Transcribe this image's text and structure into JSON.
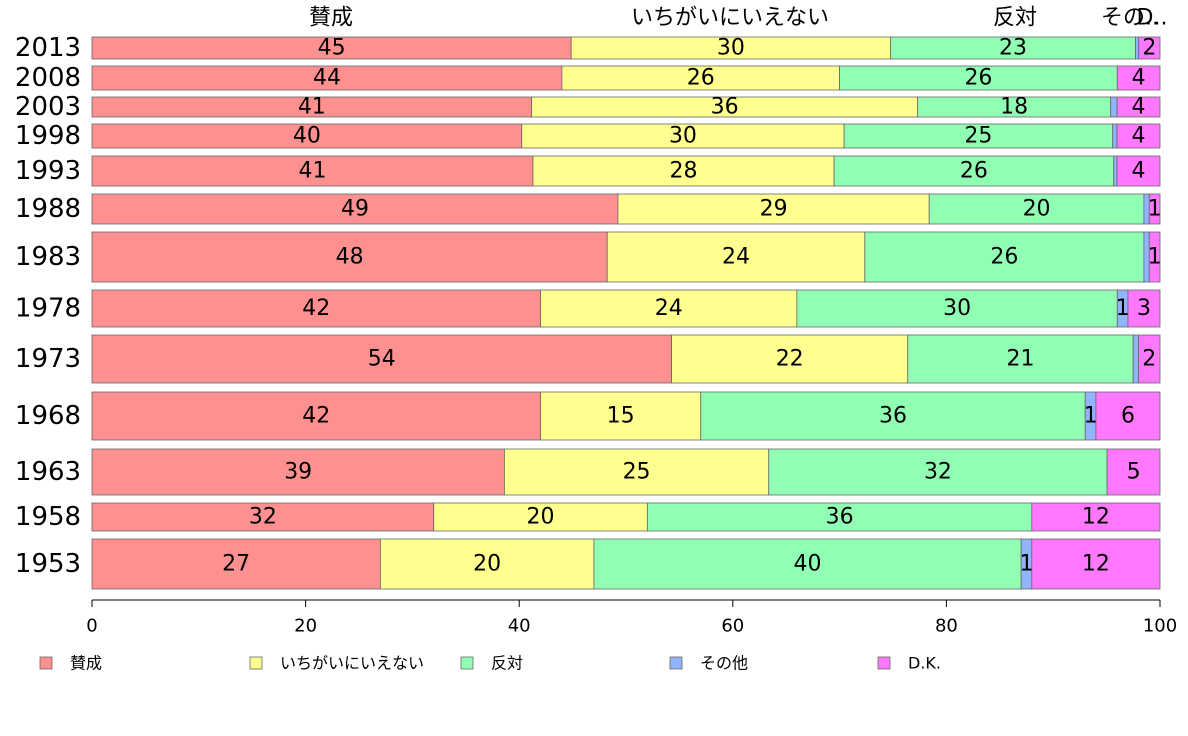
{
  "chart_data": {
    "type": "bar",
    "orientation": "horizontal",
    "stacked": true,
    "categories": [
      "1953",
      "1958",
      "1963",
      "1968",
      "1973",
      "1978",
      "1983",
      "1988",
      "1993",
      "1998",
      "2003",
      "2008",
      "2013"
    ],
    "series": [
      {
        "name": "賛成",
        "color": "#ff9090",
        "values": [
          27,
          32,
          39,
          42,
          54,
          42,
          48,
          49,
          41,
          40,
          41,
          44,
          45
        ]
      },
      {
        "name": "いちがいにいえない",
        "color": "#ffff90",
        "values": [
          20,
          20,
          25,
          15,
          22,
          24,
          24,
          29,
          28,
          30,
          36,
          26,
          30
        ]
      },
      {
        "name": "反対",
        "color": "#90ffb4",
        "values": [
          40,
          36,
          32,
          36,
          21,
          30,
          26,
          20,
          26,
          25,
          18,
          26,
          23
        ]
      },
      {
        "name": "その他",
        "color": "#90b4ff",
        "values": [
          1,
          0,
          0,
          1,
          0.5,
          1,
          0.5,
          0.5,
          0.3,
          0.4,
          0.6,
          0,
          0.3
        ]
      },
      {
        "name": "D.K.",
        "color": "#ff78ff",
        "values": [
          12,
          12,
          5,
          6,
          2,
          3,
          1,
          1,
          4,
          4,
          4,
          4,
          2
        ]
      }
    ],
    "top_labels": [
      "賛成",
      "いちがいにいえない",
      "反対",
      "その..",
      "D.."
    ],
    "xlim": [
      0,
      100
    ],
    "xticks": [
      0,
      20,
      40,
      60,
      80,
      100
    ],
    "legend_position": "bottom",
    "grid": false
  }
}
